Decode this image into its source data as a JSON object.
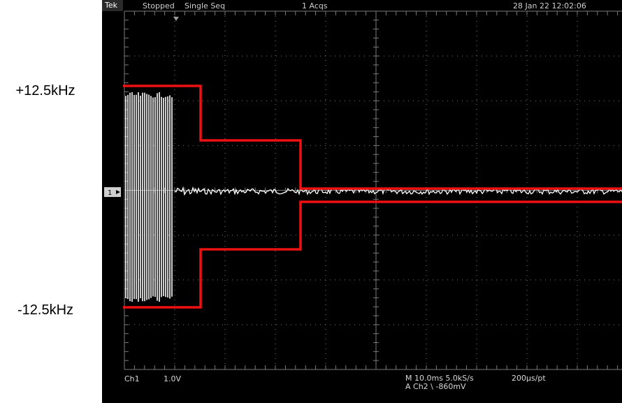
{
  "annotations": {
    "upper_limit": "+12.5kHz",
    "lower_limit": "-12.5kHz"
  },
  "status_bar": {
    "brand": "Tek",
    "state": "Stopped",
    "mode": "Single Seq",
    "acquisitions": "1 Acqs",
    "datetime": "28 Jan 22 12:02:06"
  },
  "channel": {
    "marker": "1",
    "name": "Ch1",
    "scale": "1.0V"
  },
  "timebase": {
    "horizontal": "M 10.0ms 5.0kS/s",
    "trigger": "A  Ch2  \\  -860mV",
    "resolution": "200µs/pt"
  },
  "colors": {
    "screen": "#000000",
    "grid": "#7a7a7a",
    "trace": "#ffffff",
    "mask": "#ee1111",
    "text": "#d8d8d8"
  }
}
